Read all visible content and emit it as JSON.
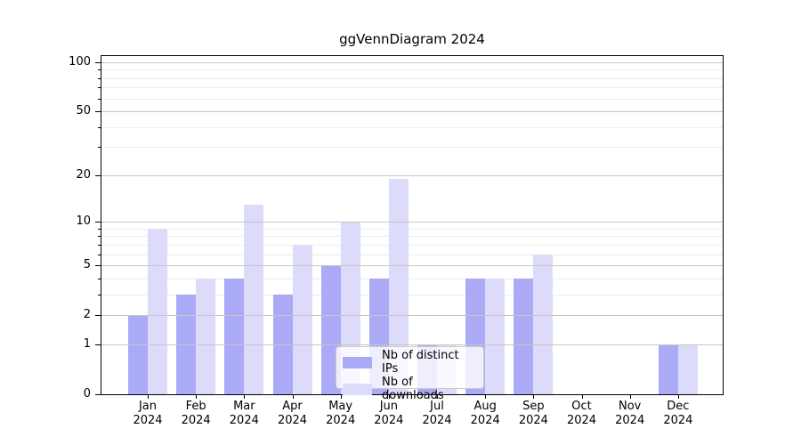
{
  "figure": {
    "background": "#ffffff"
  },
  "chart_data": {
    "type": "bar",
    "title": "ggVennDiagram 2024",
    "categories": [
      "Jan",
      "Feb",
      "Mar",
      "Apr",
      "May",
      "Jun",
      "Jul",
      "Aug",
      "Sep",
      "Oct",
      "Nov",
      "Dec"
    ],
    "x_year_label": "2024",
    "series": [
      {
        "name": "Nb of distinct IPs",
        "color": "#abaaf6",
        "values": [
          2,
          3,
          4,
          3,
          5,
          4,
          1,
          4,
          4,
          0,
          0,
          1
        ]
      },
      {
        "name": "Nb of downloads",
        "color": "#dcdbfa",
        "values": [
          9,
          4,
          13,
          7,
          10,
          19,
          1,
          4,
          6,
          0,
          0,
          1
        ]
      }
    ],
    "y_scale": "log1p",
    "y_major_ticks": [
      0,
      1,
      2,
      5,
      10,
      20,
      50,
      100
    ],
    "y_major_tick_labels": [
      "0",
      "1",
      "2",
      "5",
      "10",
      "20",
      "50",
      "100"
    ],
    "y_minor_ticks": [
      3,
      4,
      6,
      7,
      8,
      9,
      30,
      40,
      60,
      70,
      80,
      90
    ],
    "ylim": [
      0,
      110
    ],
    "grid": true,
    "grid_major_color": "#c6c6c6",
    "grid_minor_color": "#ededed",
    "legend_position": "inside-bottom-center",
    "xlabel": "",
    "ylabel": ""
  }
}
